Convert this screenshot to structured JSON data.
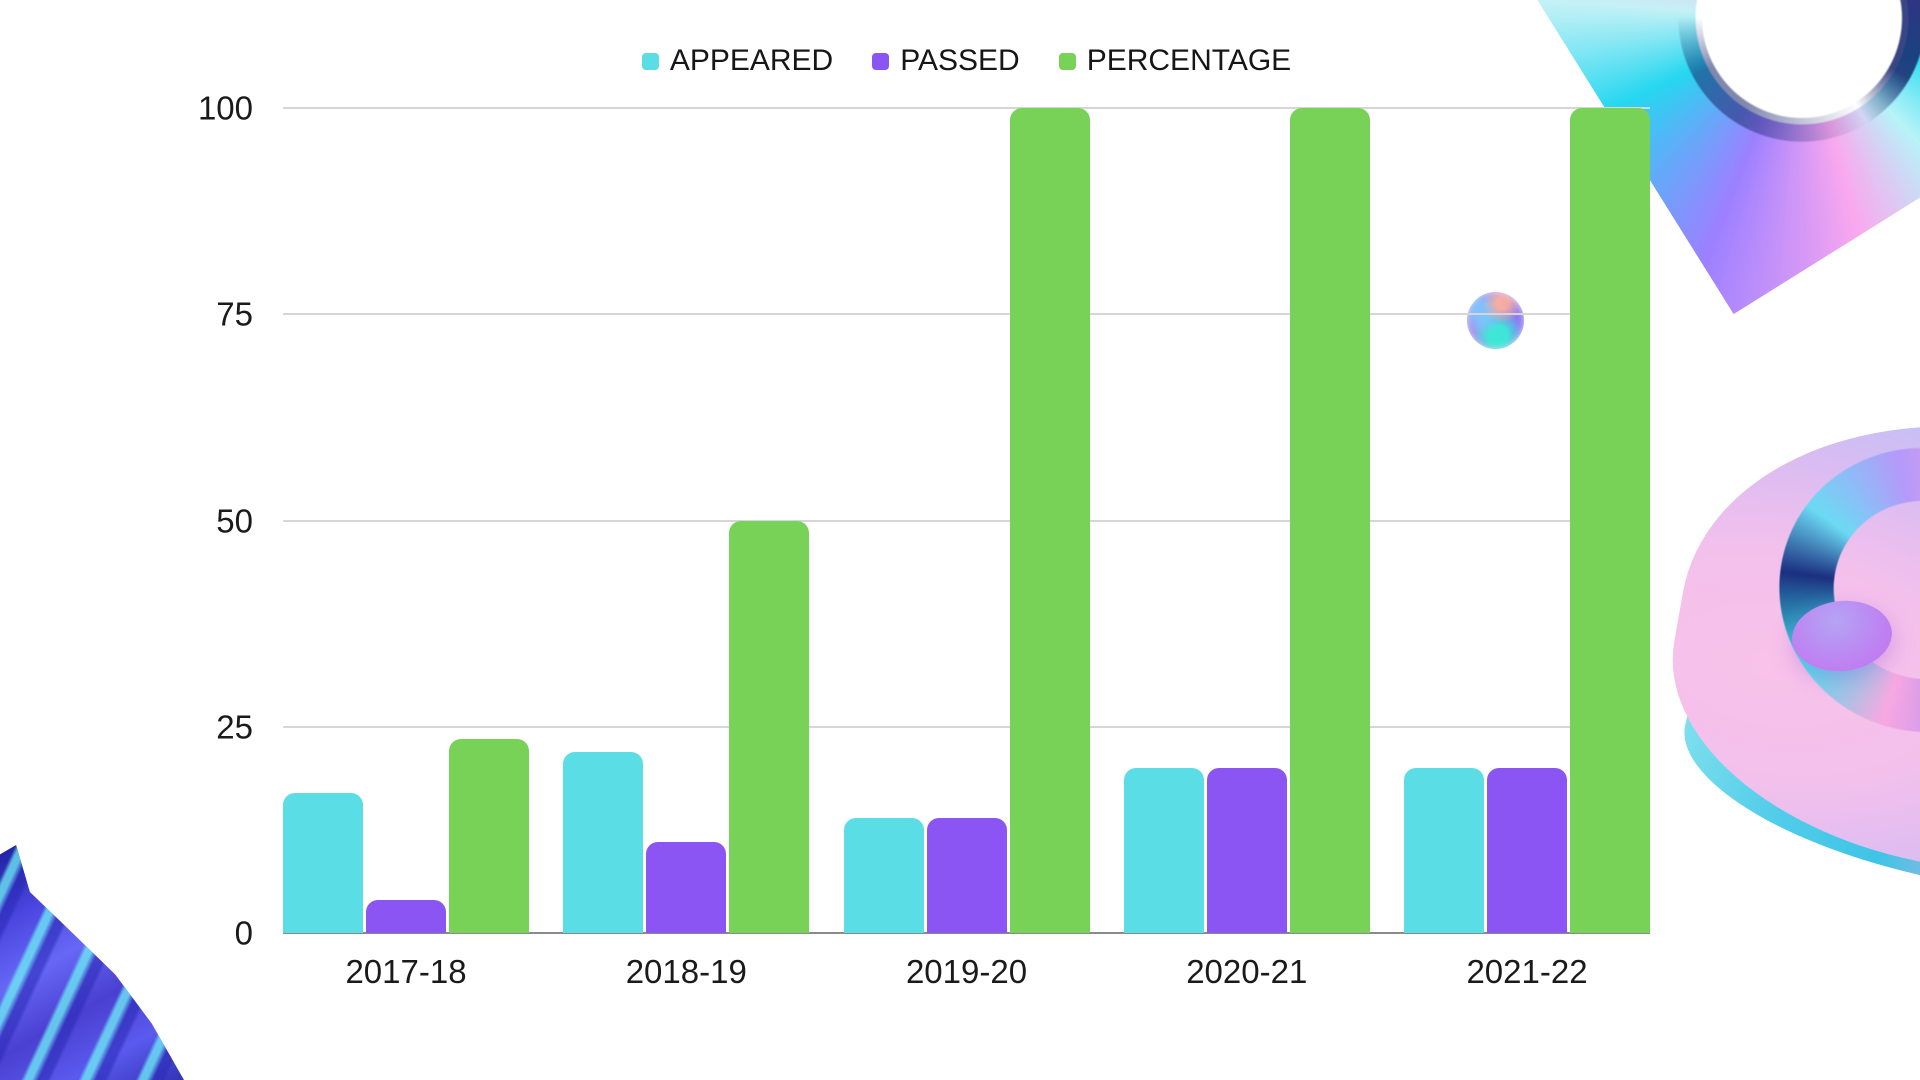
{
  "page": {
    "background_color": "#ffffff"
  },
  "legend": {
    "position": "top-center",
    "items": [
      {
        "label": "APPEARED",
        "color": "#5bdde5"
      },
      {
        "label": "PASSED",
        "color": "#8a55f2"
      },
      {
        "label": "PERCENTAGE",
        "color": "#78d257"
      }
    ]
  },
  "chart_data": {
    "type": "bar",
    "title": "",
    "xlabel": "",
    "ylabel": "",
    "categories": [
      "2017-18",
      "2018-19",
      "2019-20",
      "2020-21",
      "2021-22"
    ],
    "series": [
      {
        "name": "APPEARED",
        "color": "#5bdde5",
        "values": [
          17,
          22,
          14,
          20,
          20
        ]
      },
      {
        "name": "PASSED",
        "color": "#8a55f2",
        "values": [
          4,
          11,
          14,
          20,
          20
        ]
      },
      {
        "name": "PERCENTAGE",
        "color": "#78d257",
        "values": [
          23.53,
          50,
          100,
          100,
          100
        ]
      }
    ],
    "ylim": [
      0,
      100
    ],
    "yticks": [
      0,
      25,
      50,
      75,
      100
    ],
    "grid": true,
    "gridline_color": "#d6d6d6",
    "baseline_color": "#8a8a8a",
    "tick_text_color": "#1a1a1a",
    "legend_position": "top-center"
  },
  "decorations": {
    "torus_top_right": {
      "name": "holographic-torus",
      "palette": [
        "#3fd6ea",
        "#f2abe8",
        "#9b82f2",
        "#bdf2f6",
        "#18266c"
      ]
    },
    "donut_right": {
      "name": "holographic-donut",
      "palette": [
        "#f8c2ea",
        "#bcc2f6",
        "#52cdea",
        "#c46ff0",
        "#1d2f78"
      ]
    },
    "wave_bottom_left": {
      "name": "holographic-wave-fabric",
      "palette": [
        "#1e1f9e",
        "#6668f5",
        "#6ef0f5",
        "#4a3fd0"
      ]
    },
    "sphere_on_gridline": {
      "name": "holographic-sphere",
      "palette": [
        "#b8a2f0",
        "#3aebd6",
        "#8a76f5",
        "#ffafa0"
      ]
    }
  }
}
